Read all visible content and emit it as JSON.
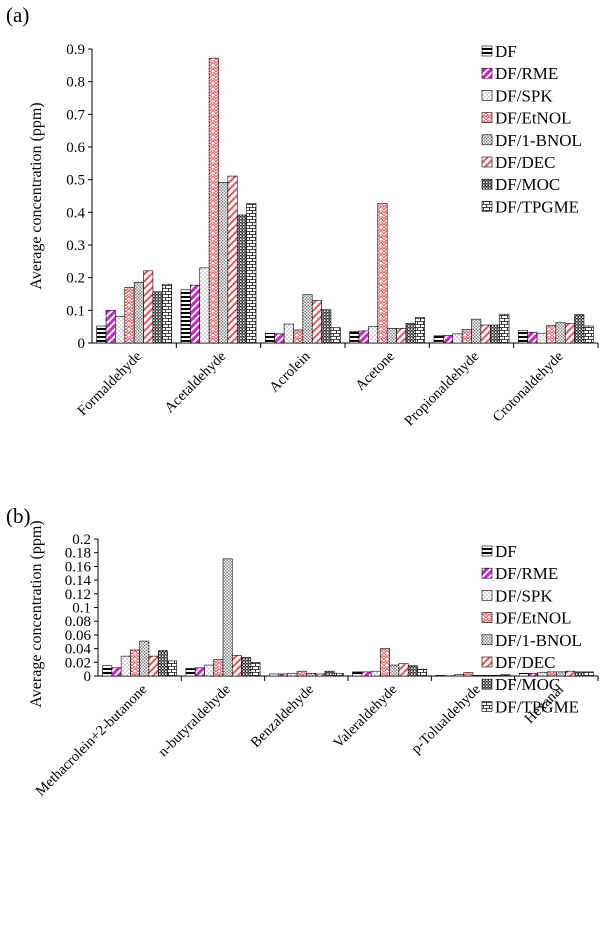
{
  "chart_data": [
    {
      "panel_label": "(a)",
      "type": "bar",
      "title": "",
      "xlabel": "",
      "ylabel": "Average concentration (ppm)",
      "ylim": [
        0,
        0.9
      ],
      "yticks": [
        "0",
        "0.1",
        "0.2",
        "0.3",
        "0.4",
        "0.5",
        "0.6",
        "0.7",
        "0.8",
        "0.9"
      ],
      "grid": "none",
      "legend_position": "top-right",
      "categories": [
        "Formaldehyde",
        "Acetaldehyde",
        "Acrolein",
        "Acetone",
        "Propionaldehyde",
        "Crotonaldehyde"
      ],
      "series": [
        {
          "name": "DF",
          "values": [
            0.052,
            0.163,
            0.03,
            0.035,
            0.022,
            0.038
          ]
        },
        {
          "name": "DF/RME",
          "values": [
            0.1,
            0.177,
            0.028,
            0.037,
            0.023,
            0.033
          ]
        },
        {
          "name": "DF/SPK",
          "values": [
            0.082,
            0.23,
            0.058,
            0.05,
            0.028,
            0.03
          ]
        },
        {
          "name": "DF/EtNOL",
          "values": [
            0.17,
            0.872,
            0.04,
            0.428,
            0.042,
            0.053
          ]
        },
        {
          "name": "DF/1-BNOL",
          "values": [
            0.186,
            0.492,
            0.148,
            0.045,
            0.073,
            0.062
          ]
        },
        {
          "name": "DF/DEC",
          "values": [
            0.221,
            0.511,
            0.13,
            0.045,
            0.055,
            0.06
          ]
        },
        {
          "name": "DF/MOC",
          "values": [
            0.157,
            0.392,
            0.102,
            0.06,
            0.055,
            0.087
          ]
        },
        {
          "name": "DF/TPGME",
          "values": [
            0.18,
            0.427,
            0.047,
            0.078,
            0.088,
            0.052
          ]
        }
      ]
    },
    {
      "panel_label": "(b)",
      "type": "bar",
      "title": "",
      "xlabel": "",
      "ylabel": "Average concentration (ppm)",
      "ylim": [
        0,
        0.2
      ],
      "yticks": [
        "0",
        "0.02",
        "0.04",
        "0.06",
        "0.08",
        "0.1",
        "0.12",
        "0.14",
        "0.16",
        "0.18",
        "0.2"
      ],
      "grid": "none",
      "legend_position": "top-right",
      "categories": [
        "Methacrolein+2-butanone",
        "n-butyraldehyde",
        "Benzaldehyde",
        "Valeraldehyde",
        "p-Tolualdehyde",
        "Hexanal"
      ],
      "series": [
        {
          "name": "DF",
          "values": [
            0.015,
            0.011,
            0.003,
            0.006,
            0.001,
            0.004
          ]
        },
        {
          "name": "DF/RME",
          "values": [
            0.012,
            0.012,
            0.003,
            0.006,
            0.0,
            0.004
          ]
        },
        {
          "name": "DF/SPK",
          "values": [
            0.029,
            0.016,
            0.004,
            0.007,
            0.002,
            0.005
          ]
        },
        {
          "name": "DF/EtNOL",
          "values": [
            0.038,
            0.024,
            0.007,
            0.04,
            0.005,
            0.006
          ]
        },
        {
          "name": "DF/1-BNOL",
          "values": [
            0.051,
            0.171,
            0.004,
            0.016,
            0.001,
            0.006
          ]
        },
        {
          "name": "DF/DEC",
          "values": [
            0.029,
            0.03,
            0.003,
            0.018,
            0.001,
            0.007
          ]
        },
        {
          "name": "DF/MOC",
          "values": [
            0.037,
            0.027,
            0.007,
            0.015,
            0.001,
            0.006
          ]
        },
        {
          "name": "DF/TPGME",
          "values": [
            0.022,
            0.02,
            0.004,
            0.01,
            0.002,
            0.006
          ]
        }
      ]
    }
  ]
}
